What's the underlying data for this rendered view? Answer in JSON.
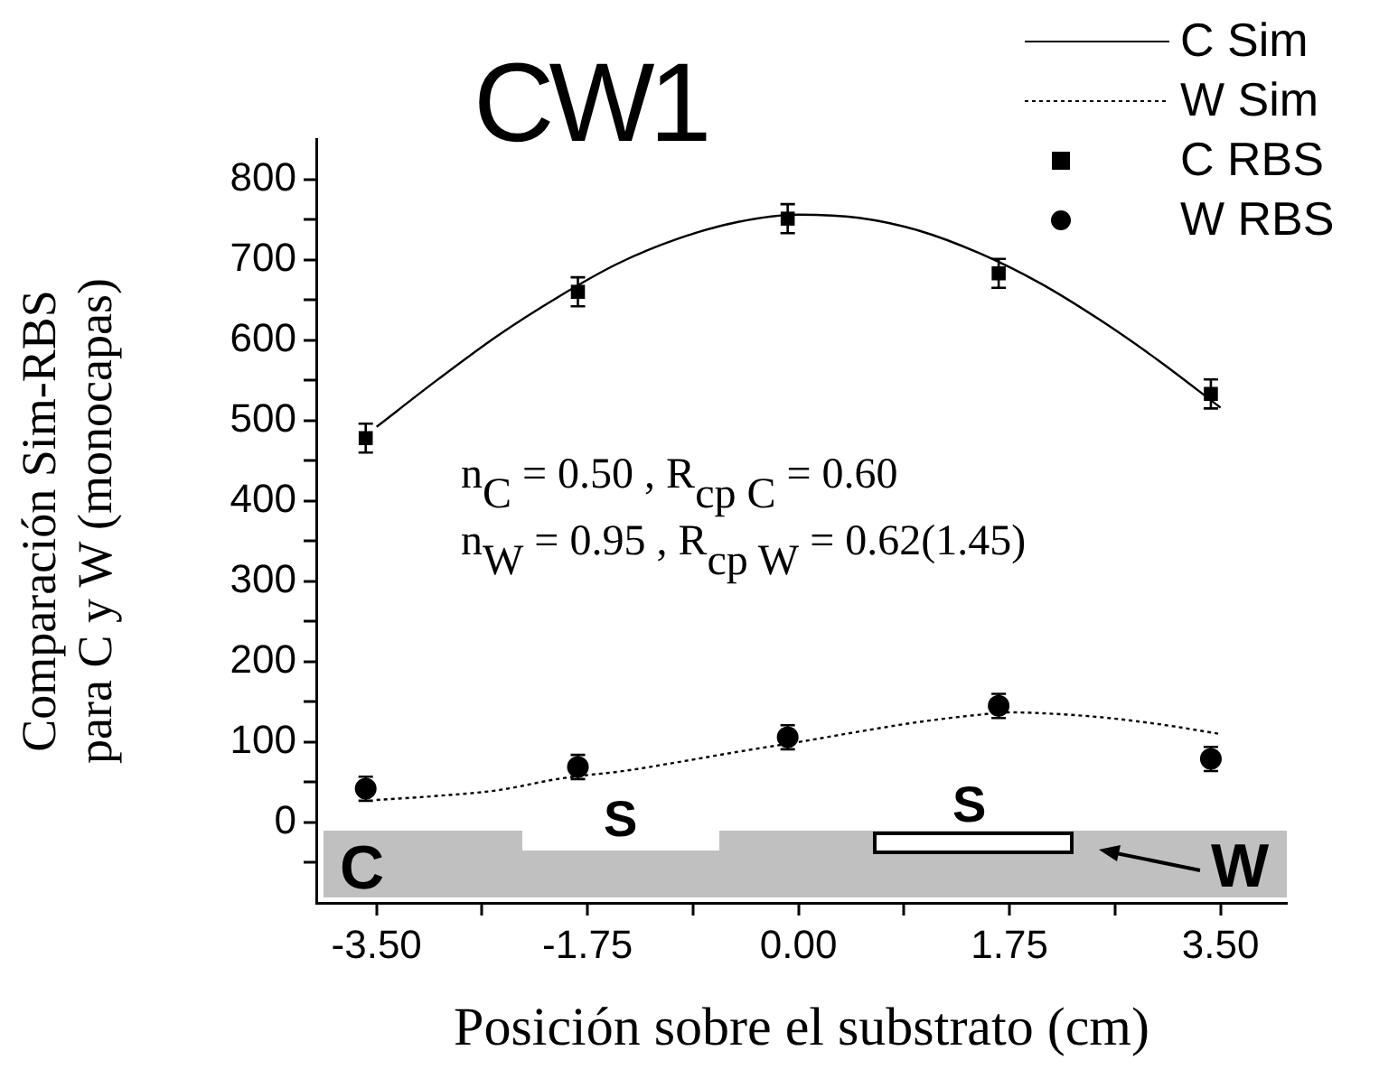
{
  "chart_data": {
    "type": "line",
    "title": "CW1",
    "xlabel": "Posición sobre el substrato (cm)",
    "ylabel": "Comparación Sim-RBS para C y W (monocapas)",
    "xlim": [
      -4,
      4.05
    ],
    "ylim": [
      -100,
      850
    ],
    "xticks": [
      {
        "value": -3.5,
        "label": "-3.50"
      },
      {
        "value": -2.625,
        "label": null
      },
      {
        "value": -1.75,
        "label": "-1.75"
      },
      {
        "value": -0.875,
        "label": null
      },
      {
        "value": 0,
        "label": "0.00"
      },
      {
        "value": 0.875,
        "label": null
      },
      {
        "value": 1.75,
        "label": "1.75"
      },
      {
        "value": 2.625,
        "label": null
      },
      {
        "value": 3.5,
        "label": "3.50"
      }
    ],
    "yticks": [
      {
        "value": -50,
        "label": null
      },
      0,
      {
        "value": 50,
        "label": null
      },
      100,
      {
        "value": 150,
        "label": null
      },
      200,
      {
        "value": 250,
        "label": null
      },
      300,
      {
        "value": 350,
        "label": null
      },
      400,
      {
        "value": 450,
        "label": null
      },
      500,
      {
        "value": 550,
        "label": null
      },
      600,
      {
        "value": 650,
        "label": null
      },
      700,
      {
        "value": 750,
        "label": null
      },
      800
    ],
    "grid": false,
    "legend": "top right",
    "series": [
      {
        "name": "C Sim",
        "type": "line",
        "color": "#000000",
        "line_style": "solid",
        "marker": "none",
        "x": [
          -3.5,
          -3,
          -2.5,
          -2,
          -1.5,
          -1,
          -0.5,
          0,
          0.5,
          1,
          1.5,
          2,
          2.5,
          3,
          3.5
        ],
        "values": [
          492,
          550,
          605,
          653,
          695,
          726,
          747,
          756,
          752,
          736,
          708,
          671,
          625,
          573,
          516
        ]
      },
      {
        "name": "W Sim",
        "type": "line",
        "color": "#000000",
        "line_style": "dotted",
        "marker": "none",
        "x": [
          -3.5,
          -3,
          -2.5,
          -2,
          -1.75,
          -1.5,
          -1,
          -0.5,
          0,
          0.5,
          1,
          1.5,
          1.75,
          2,
          2.5,
          3,
          3.5
        ],
        "values": [
          28,
          33,
          40,
          54,
          59,
          63,
          75,
          88,
          100,
          113,
          125,
          134,
          137,
          136,
          131,
          122,
          110
        ]
      },
      {
        "name": "C RBS",
        "type": "scatter",
        "color": "#000000",
        "marker": "square",
        "x": [
          -3.59,
          -1.83,
          -0.09,
          1.66,
          3.42
        ],
        "values": [
          478,
          660,
          751,
          683,
          533
        ],
        "errors": [
          18,
          18,
          18,
          18,
          18
        ]
      },
      {
        "name": "W RBS",
        "type": "scatter",
        "color": "#000000",
        "marker": "circle",
        "x": [
          -3.59,
          -1.83,
          -0.09,
          1.66,
          3.42
        ],
        "values": [
          42,
          69,
          106,
          145,
          79
        ],
        "errors": [
          15,
          15,
          15,
          15,
          15
        ]
      }
    ],
    "annotations": [
      "n$_{C}$ = 0.50 , R$_{cp C}$ = 0.60",
      "n$_{W}$ = 0.95 , R$_{cp W}$ = 0.62(1.45)",
      "C",
      "S",
      "S",
      "W"
    ]
  }
}
